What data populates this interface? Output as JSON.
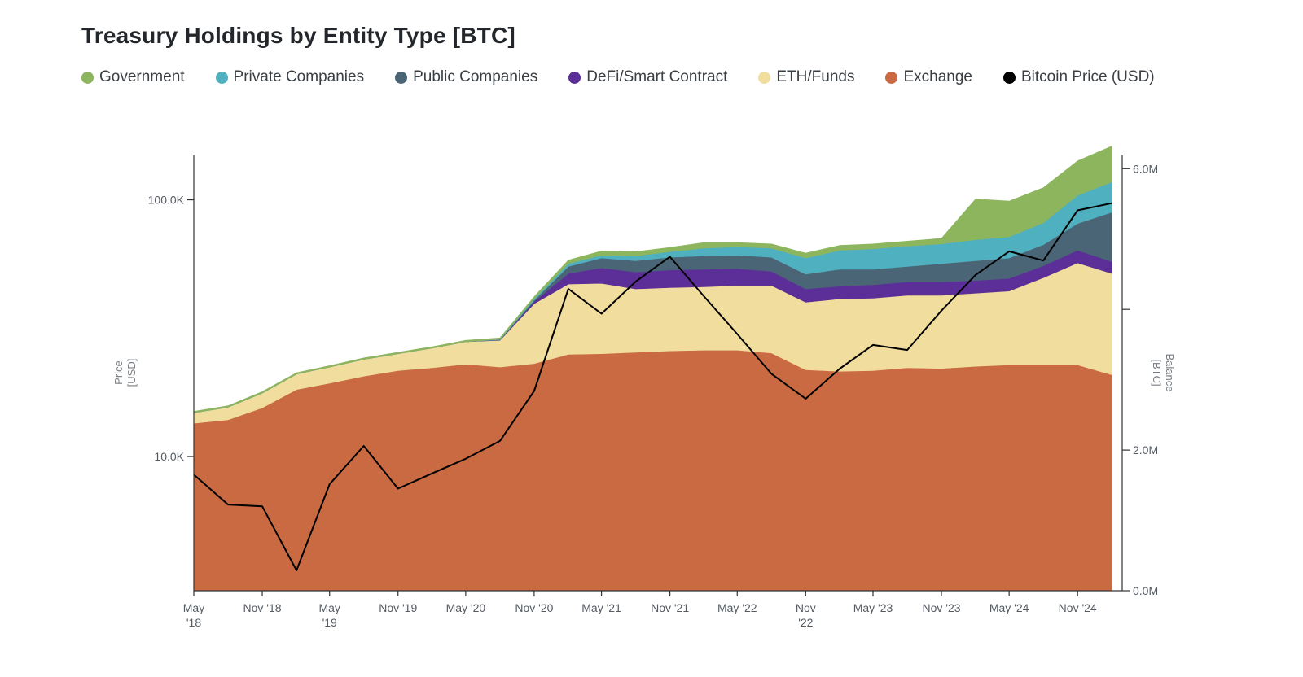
{
  "title": "Treasury Holdings by Entity Type [BTC]",
  "legend": [
    {
      "label": "Government",
      "color": "#8db55e"
    },
    {
      "label": "Private Companies",
      "color": "#4fb0bf"
    },
    {
      "label": "Public Companies",
      "color": "#4a6576"
    },
    {
      "label": "DeFi/Smart Contract",
      "color": "#5b2f97"
    },
    {
      "label": "ETH/Funds",
      "color": "#f1dd9e"
    },
    {
      "label": "Exchange",
      "color": "#c96a43"
    },
    {
      "label": "Bitcoin Price (USD)",
      "color": "#000000"
    }
  ],
  "chart_data": {
    "type": "area",
    "title": "Treasury Holdings by Entity Type [BTC]",
    "x": [
      "2018-05",
      "2018-08",
      "2018-11",
      "2019-02",
      "2019-05",
      "2019-08",
      "2019-11",
      "2020-02",
      "2020-05",
      "2020-08",
      "2020-11",
      "2021-02",
      "2021-05",
      "2021-08",
      "2021-11",
      "2022-02",
      "2022-05",
      "2022-08",
      "2022-11",
      "2023-02",
      "2023-05",
      "2023-08",
      "2023-11",
      "2024-02",
      "2024-05",
      "2024-08",
      "2024-11",
      "2025-02"
    ],
    "x_tick_labels": [
      {
        "date": "2018-05",
        "line1": "May",
        "line2": "'18"
      },
      {
        "date": "2018-11",
        "line1": "Nov '18",
        "line2": ""
      },
      {
        "date": "2019-05",
        "line1": "May",
        "line2": "'19"
      },
      {
        "date": "2019-11",
        "line1": "Nov '19",
        "line2": ""
      },
      {
        "date": "2020-05",
        "line1": "May '20",
        "line2": ""
      },
      {
        "date": "2020-11",
        "line1": "Nov '20",
        "line2": ""
      },
      {
        "date": "2021-05",
        "line1": "May '21",
        "line2": ""
      },
      {
        "date": "2021-11",
        "line1": "Nov '21",
        "line2": ""
      },
      {
        "date": "2022-05",
        "line1": "May '22",
        "line2": ""
      },
      {
        "date": "2022-11",
        "line1": "Nov",
        "line2": "'22"
      },
      {
        "date": "2023-05",
        "line1": "May '23",
        "line2": ""
      },
      {
        "date": "2023-11",
        "line1": "Nov '23",
        "line2": ""
      },
      {
        "date": "2024-05",
        "line1": "May '24",
        "line2": ""
      },
      {
        "date": "2024-11",
        "line1": "Nov '24",
        "line2": ""
      }
    ],
    "y_left": {
      "label_line1": "Price",
      "label_line2": "[USD]",
      "scale": "log",
      "range": [
        3000,
        150000
      ],
      "ticks": [
        {
          "value": 10000,
          "label": "10.0K"
        },
        {
          "value": 100000,
          "label": "100.0K"
        }
      ]
    },
    "y_right": {
      "label_line1": "Balance",
      "label_line2": "[BTC]",
      "scale": "linear",
      "range": [
        0,
        6200000
      ],
      "ticks": [
        {
          "value": 0,
          "label": "0.0M"
        },
        {
          "value": 2000000,
          "label": "2.0M"
        },
        {
          "value": 4000000,
          "label": ""
        },
        {
          "value": 6000000,
          "label": "6.0M"
        }
      ]
    },
    "stack_order": [
      "Exchange",
      "ETH/Funds",
      "DeFi/Smart Contract",
      "Public Companies",
      "Private Companies",
      "Government"
    ],
    "series": [
      {
        "name": "Exchange",
        "color": "#c96a43",
        "values": [
          2380000,
          2430000,
          2600000,
          2860000,
          2950000,
          3050000,
          3130000,
          3170000,
          3220000,
          3180000,
          3230000,
          3360000,
          3370000,
          3390000,
          3410000,
          3420000,
          3420000,
          3380000,
          3140000,
          3120000,
          3130000,
          3170000,
          3160000,
          3190000,
          3210000,
          3210000,
          3210000,
          3070000
        ]
      },
      {
        "name": "ETH/Funds",
        "color": "#f1dd9e",
        "values": [
          150000,
          180000,
          210000,
          220000,
          230000,
          240000,
          240000,
          280000,
          320000,
          380000,
          850000,
          1000000,
          1000000,
          900000,
          900000,
          900000,
          920000,
          960000,
          960000,
          1030000,
          1030000,
          1030000,
          1040000,
          1040000,
          1050000,
          1240000,
          1450000,
          1440000
        ]
      },
      {
        "name": "DeFi/Smart Contract",
        "color": "#5b2f97",
        "values": [
          0,
          0,
          0,
          0,
          0,
          0,
          0,
          0,
          0,
          5000,
          30000,
          150000,
          220000,
          240000,
          250000,
          250000,
          240000,
          200000,
          190000,
          180000,
          190000,
          190000,
          190000,
          180000,
          180000,
          170000,
          180000,
          170000
        ]
      },
      {
        "name": "Public Companies",
        "color": "#4a6576",
        "values": [
          0,
          0,
          0,
          0,
          0,
          0,
          0,
          0,
          0,
          5000,
          20000,
          100000,
          140000,
          160000,
          180000,
          190000,
          190000,
          200000,
          210000,
          240000,
          220000,
          220000,
          260000,
          280000,
          290000,
          300000,
          380000,
          700000
        ]
      },
      {
        "name": "Private Companies",
        "color": "#4fb0bf",
        "values": [
          0,
          0,
          0,
          0,
          0,
          0,
          0,
          0,
          0,
          5000,
          20000,
          40000,
          40000,
          70000,
          80000,
          110000,
          120000,
          130000,
          230000,
          270000,
          290000,
          290000,
          280000,
          300000,
          300000,
          310000,
          400000,
          430000
        ]
      },
      {
        "name": "Government",
        "color": "#8db55e",
        "values": [
          20000,
          20000,
          20000,
          20000,
          20000,
          20000,
          20000,
          20000,
          20000,
          20000,
          30000,
          50000,
          60000,
          60000,
          60000,
          80000,
          60000,
          60000,
          70000,
          70000,
          70000,
          70000,
          80000,
          580000,
          510000,
          500000,
          490000,
          510000
        ]
      }
    ],
    "price_series": {
      "name": "Bitcoin Price (USD)",
      "color": "#000000",
      "axis": "left",
      "values": [
        8500,
        6500,
        6400,
        3600,
        7800,
        11000,
        7500,
        8600,
        9800,
        11500,
        18000,
        45000,
        36000,
        48000,
        60000,
        42000,
        30000,
        21000,
        16800,
        22000,
        27200,
        26000,
        37000,
        51000,
        63000,
        58000,
        91000,
        97000
      ]
    },
    "grid": false,
    "legend_position": "top-left"
  }
}
